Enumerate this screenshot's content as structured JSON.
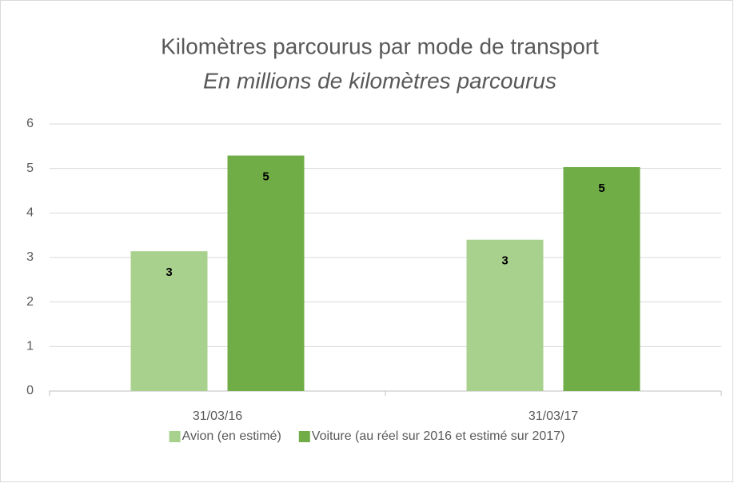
{
  "chart_data": {
    "type": "bar",
    "title": "Kilomètres parcourus par mode de transport",
    "subtitle": "En millions de kilomètres parcourus",
    "categories": [
      "31/03/16",
      "31/03/17"
    ],
    "series": [
      {
        "name": "Avion (en estimé)",
        "color": "#a9d18e",
        "values": [
          3.14,
          3.4
        ],
        "value_labels": [
          "3",
          "3"
        ]
      },
      {
        "name": "Voiture (au réel sur 2016 et estimé sur 2017)",
        "color": "#70ad47",
        "values": [
          5.29,
          5.03
        ],
        "value_labels": [
          "5",
          "5"
        ]
      }
    ],
    "ylim": [
      0,
      6
    ],
    "yticks": [
      0,
      1,
      2,
      3,
      4,
      5,
      6
    ],
    "grid": true,
    "legend": "bottom"
  }
}
